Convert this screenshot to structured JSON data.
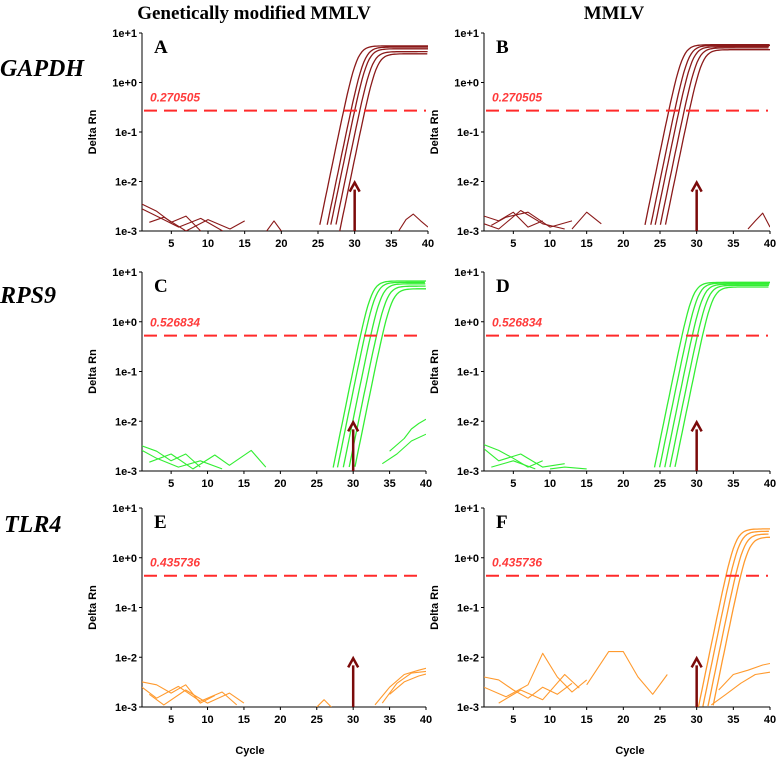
{
  "column_titles": [
    "Genetically modified MMLV",
    "MMLV"
  ],
  "row_labels": [
    "GAPDH",
    "RPS9",
    "TLR4"
  ],
  "x_axis_label": "Cycle",
  "y_axis_label": "Delta Rn",
  "colors": {
    "GAPDH": "#8b1a1a",
    "RPS9": "#33ee33",
    "TLR4": "#ff9a2e",
    "threshold": "#ff2a2a",
    "arrow": "#7b0a0a"
  },
  "chart_data": [
    {
      "type": "line",
      "panel": "A",
      "gene": "GAPDH",
      "enzyme": "Genetically modified MMLV",
      "x_ticks": [
        5,
        10,
        15,
        20,
        25,
        30,
        35,
        40
      ],
      "y_ticks": [
        "1e-3",
        "1e-2",
        "1e-1",
        "1e+0",
        "1e+1"
      ],
      "xlim": [
        1,
        40
      ],
      "ylim_log10": [
        -3,
        1
      ],
      "yscale": "log",
      "threshold": 0.270505,
      "threshold_label": "0.270505",
      "arrow_cycle": 30,
      "amplification_ct": [
        28.5,
        29.5,
        30.0,
        30.7,
        31.4
      ],
      "plateau": [
        5.5,
        5.2,
        4.8,
        4.2,
        3.8
      ],
      "noise": [
        [
          [
            1,
            0.0035
          ],
          [
            3,
            0.0025
          ],
          [
            5,
            0.0015
          ],
          [
            7,
            0.002
          ],
          [
            9,
            0.001
          ]
        ],
        [
          [
            1,
            0.0028
          ],
          [
            3,
            0.002
          ],
          [
            6,
            0.0012
          ],
          [
            9,
            0.0018
          ],
          [
            12,
            0.001
          ]
        ],
        [
          [
            2,
            0.0015
          ],
          [
            4,
            0.0019
          ],
          [
            7,
            0.001
          ],
          [
            10,
            0.0017
          ],
          [
            13,
            0.0011
          ],
          [
            15,
            0.0016
          ]
        ],
        [
          [
            18,
            0.001
          ],
          [
            19,
            0.0016
          ],
          [
            20,
            0.001
          ]
        ],
        [
          [
            36,
            0.001
          ],
          [
            37,
            0.0017
          ],
          [
            38,
            0.0022
          ],
          [
            39,
            0.0016
          ],
          [
            40,
            0.0012
          ]
        ]
      ]
    },
    {
      "type": "line",
      "panel": "B",
      "gene": "GAPDH",
      "enzyme": "MMLV",
      "x_ticks": [
        5,
        10,
        15,
        20,
        25,
        30,
        35,
        40
      ],
      "y_ticks": [
        "1e-3",
        "1e-2",
        "1e-1",
        "1e+0",
        "1e+1"
      ],
      "xlim": [
        1,
        40
      ],
      "ylim_log10": [
        -3,
        1
      ],
      "yscale": "log",
      "threshold": 0.270505,
      "threshold_label": "0.270505",
      "arrow_cycle": 30,
      "amplification_ct": [
        26.2,
        27.0,
        27.6,
        28.3,
        29.0
      ],
      "plateau": [
        5.8,
        5.6,
        5.3,
        5.0,
        4.6
      ],
      "noise": [
        [
          [
            1,
            0.002
          ],
          [
            3,
            0.0016
          ],
          [
            5,
            0.0024
          ],
          [
            7,
            0.0012
          ],
          [
            9,
            0.0016
          ]
        ],
        [
          [
            1,
            0.0014
          ],
          [
            3,
            0.0011
          ],
          [
            6,
            0.0026
          ],
          [
            9,
            0.0014
          ],
          [
            12,
            0.0011
          ]
        ],
        [
          [
            2,
            0.0013
          ],
          [
            4,
            0.0019
          ],
          [
            7,
            0.0024
          ],
          [
            10,
            0.0012
          ],
          [
            13,
            0.0016
          ]
        ],
        [
          [
            13,
            0.0011
          ],
          [
            15,
            0.0024
          ],
          [
            17,
            0.0014
          ]
        ],
        [
          [
            37,
            0.0011
          ],
          [
            38,
            0.0016
          ],
          [
            39,
            0.0023
          ],
          [
            40,
            0.0012
          ]
        ]
      ]
    },
    {
      "type": "line",
      "panel": "C",
      "gene": "RPS9",
      "enzyme": "Genetically modified MMLV",
      "x_ticks": [
        5,
        10,
        15,
        20,
        25,
        30,
        35,
        40
      ],
      "y_ticks": [
        "1e-3",
        "1e-2",
        "1e-1",
        "1e+0",
        "1e+1"
      ],
      "xlim": [
        1,
        40
      ],
      "ylim_log10": [
        -3,
        1
      ],
      "yscale": "log",
      "threshold": 0.526834,
      "threshold_label": "0.526834",
      "arrow_cycle": 30,
      "amplification_ct": [
        31.0,
        31.6,
        32.4,
        33.2,
        34.0
      ],
      "plateau": [
        6.6,
        6.2,
        5.8,
        5.2,
        4.6
      ],
      "noise": [
        [
          [
            1,
            0.0032
          ],
          [
            3,
            0.0025
          ],
          [
            5,
            0.0016
          ],
          [
            7,
            0.0022
          ],
          [
            9,
            0.0012
          ]
        ],
        [
          [
            1,
            0.0026
          ],
          [
            3,
            0.0018
          ],
          [
            6,
            0.0012
          ],
          [
            9,
            0.0016
          ],
          [
            12,
            0.0011
          ]
        ],
        [
          [
            2,
            0.0015
          ],
          [
            5,
            0.0022
          ],
          [
            8,
            0.0011
          ],
          [
            11,
            0.0021
          ],
          [
            13,
            0.0013
          ],
          [
            16,
            0.0026
          ],
          [
            18,
            0.0012
          ]
        ],
        [
          [
            35,
            0.0025
          ],
          [
            37,
            0.0045
          ],
          [
            38,
            0.007
          ],
          [
            39,
            0.009
          ],
          [
            40,
            0.011
          ]
        ],
        [
          [
            34,
            0.0014
          ],
          [
            36,
            0.0022
          ],
          [
            38,
            0.004
          ],
          [
            40,
            0.0055
          ]
        ]
      ]
    },
    {
      "type": "line",
      "panel": "D",
      "gene": "RPS9",
      "enzyme": "MMLV",
      "x_ticks": [
        5,
        10,
        15,
        20,
        25,
        30,
        35,
        40
      ],
      "y_ticks": [
        "1e-3",
        "1e-2",
        "1e-1",
        "1e+0",
        "1e+1"
      ],
      "xlim": [
        1,
        40
      ],
      "ylim_log10": [
        -3,
        1
      ],
      "yscale": "log",
      "threshold": 0.526834,
      "threshold_label": "0.526834",
      "arrow_cycle": 30,
      "amplification_ct": [
        28.0,
        28.7,
        29.4,
        30.1,
        30.8
      ],
      "plateau": [
        6.2,
        6.0,
        5.7,
        5.4,
        5.0
      ],
      "noise": [
        [
          [
            1,
            0.0034
          ],
          [
            3,
            0.0026
          ],
          [
            5,
            0.0018
          ],
          [
            7,
            0.0012
          ],
          [
            9,
            0.0016
          ]
        ],
        [
          [
            1,
            0.0028
          ],
          [
            3,
            0.0016
          ],
          [
            6,
            0.0022
          ],
          [
            9,
            0.0012
          ],
          [
            12,
            0.0014
          ]
        ],
        [
          [
            2,
            0.0012
          ],
          [
            5,
            0.0016
          ],
          [
            8,
            0.0011
          ]
        ],
        [
          [
            10,
            0.0011
          ],
          [
            12,
            0.0012
          ],
          [
            15,
            0.0011
          ]
        ]
      ]
    },
    {
      "type": "line",
      "panel": "E",
      "gene": "TLR4",
      "enzyme": "Genetically modified MMLV",
      "x_ticks": [
        5,
        10,
        15,
        20,
        25,
        30,
        35,
        40
      ],
      "y_ticks": [
        "1e-3",
        "1e-2",
        "1e-1",
        "1e+0",
        "1e+1"
      ],
      "xlim": [
        1,
        40
      ],
      "ylim_log10": [
        -3,
        1
      ],
      "yscale": "log",
      "threshold": 0.435736,
      "threshold_label": "0.435736",
      "arrow_cycle": 30,
      "amplification_ct": [],
      "plateau": [],
      "noise": [
        [
          [
            1,
            0.0032
          ],
          [
            3,
            0.0028
          ],
          [
            5,
            0.0019
          ],
          [
            7,
            0.0028
          ],
          [
            9,
            0.0012
          ],
          [
            11,
            0.0017
          ]
        ],
        [
          [
            1,
            0.0025
          ],
          [
            3,
            0.0015
          ],
          [
            6,
            0.0026
          ],
          [
            9,
            0.0013
          ],
          [
            12,
            0.002
          ],
          [
            14,
            0.0011
          ]
        ],
        [
          [
            2,
            0.0018
          ],
          [
            4,
            0.0011
          ],
          [
            7,
            0.0022
          ],
          [
            10,
            0.0012
          ],
          [
            13,
            0.0019
          ],
          [
            15,
            0.0012
          ]
        ],
        [
          [
            25,
            0.001
          ],
          [
            26,
            0.0014
          ],
          [
            27,
            0.001
          ]
        ],
        [
          [
            33,
            0.0011
          ],
          [
            35,
            0.0025
          ],
          [
            37,
            0.0045
          ],
          [
            39,
            0.0055
          ],
          [
            40,
            0.006
          ]
        ],
        [
          [
            34,
            0.0012
          ],
          [
            36,
            0.003
          ],
          [
            38,
            0.0048
          ],
          [
            40,
            0.0052
          ]
        ],
        [
          [
            35,
            0.0018
          ],
          [
            37,
            0.0032
          ],
          [
            39,
            0.0042
          ],
          [
            40,
            0.0046
          ]
        ]
      ]
    },
    {
      "type": "line",
      "panel": "F",
      "gene": "TLR4",
      "enzyme": "MMLV",
      "x_ticks": [
        5,
        10,
        15,
        20,
        25,
        30,
        35,
        40
      ],
      "y_ticks": [
        "1e-3",
        "1e-2",
        "1e-1",
        "1e+0",
        "1e+1"
      ],
      "xlim": [
        1,
        40
      ],
      "ylim_log10": [
        -3,
        1
      ],
      "yscale": "log",
      "threshold": 0.435736,
      "threshold_label": "0.435736",
      "arrow_cycle": 30,
      "amplification_ct": [
        34.0,
        34.6,
        35.3,
        36.0
      ],
      "plateau": [
        3.8,
        3.4,
        3.0,
        2.6
      ],
      "noise": [
        [
          [
            1,
            0.004
          ],
          [
            3,
            0.0035
          ],
          [
            5,
            0.0022
          ],
          [
            7,
            0.0015
          ],
          [
            9,
            0.0025
          ],
          [
            11,
            0.0018
          ],
          [
            13,
            0.003
          ]
        ],
        [
          [
            1,
            0.0025
          ],
          [
            4,
            0.0016
          ],
          [
            7,
            0.0028
          ],
          [
            9,
            0.012
          ],
          [
            11,
            0.004
          ],
          [
            13,
            0.002
          ],
          [
            15,
            0.0035
          ]
        ],
        [
          [
            3,
            0.0012
          ],
          [
            6,
            0.0022
          ],
          [
            9,
            0.0014
          ],
          [
            12,
            0.0045
          ],
          [
            14,
            0.0024
          ]
        ],
        [
          [
            15,
            0.0028
          ],
          [
            18,
            0.013
          ],
          [
            20,
            0.013
          ],
          [
            22,
            0.004
          ],
          [
            24,
            0.0018
          ],
          [
            26,
            0.0045
          ]
        ],
        [
          [
            33,
            0.0022
          ],
          [
            35,
            0.0045
          ],
          [
            37,
            0.0055
          ],
          [
            39,
            0.007
          ],
          [
            40,
            0.0075
          ]
        ],
        [
          [
            32,
            0.0011
          ],
          [
            34,
            0.0018
          ],
          [
            36,
            0.003
          ],
          [
            38,
            0.0045
          ],
          [
            40,
            0.005
          ]
        ]
      ]
    }
  ]
}
